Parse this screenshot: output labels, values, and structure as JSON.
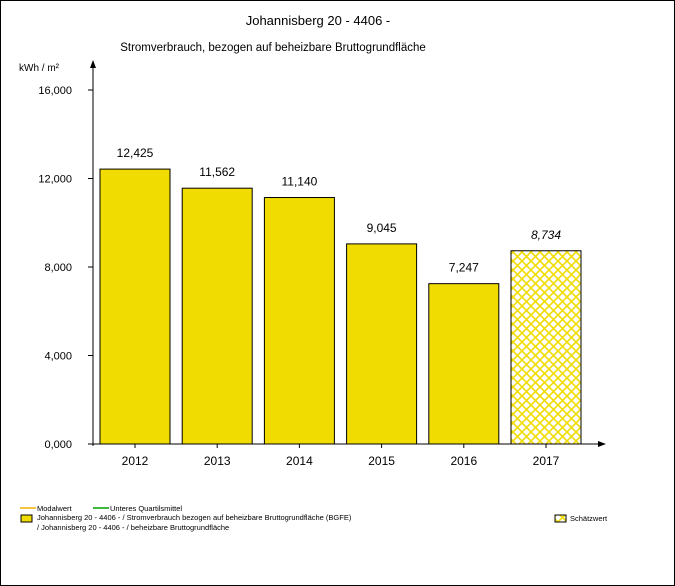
{
  "chart_data": {
    "type": "bar",
    "title": "Johannisberg 20 - 4406 -",
    "subtitle": "Stromverbrauch, bezogen auf beheizbare Bruttogrundfläche",
    "ylabel": "kWh / m²",
    "xlabel": "",
    "ylim": [
      0,
      16
    ],
    "yticks": [
      "0,000",
      "4,000",
      "8,000",
      "12,000",
      "16,000"
    ],
    "ytick_values": [
      0,
      4,
      8,
      12,
      16
    ],
    "categories": [
      "2012",
      "2013",
      "2014",
      "2015",
      "2016",
      "2017"
    ],
    "values": [
      12.425,
      11.562,
      11.14,
      9.045,
      7.247,
      8.734
    ],
    "value_labels": [
      "12,425",
      "11,562",
      "11,140",
      "9,045",
      "7,247",
      "8,734"
    ],
    "estimated": [
      false,
      false,
      false,
      false,
      false,
      true
    ],
    "bar_color": "#f0dc00",
    "estimate_hatch_color": "#f0dc00",
    "grid": false,
    "legend_position": "bottom",
    "legend": {
      "modal": "Modalwert",
      "modal_color": "#f0b000",
      "quartile": "Unteres Quartilsmittel",
      "quartile_color": "#00a000",
      "series_line1": "Johannisberg 20 - 4406 - / Stromverbrauch bezogen auf beheizbare Bruttogrundfläche (BGFE)",
      "series_line2": "/ Johannisberg 20 - 4406 - / beheizbare Bruttogrundfläche",
      "estimate": "Schätzwert"
    }
  }
}
